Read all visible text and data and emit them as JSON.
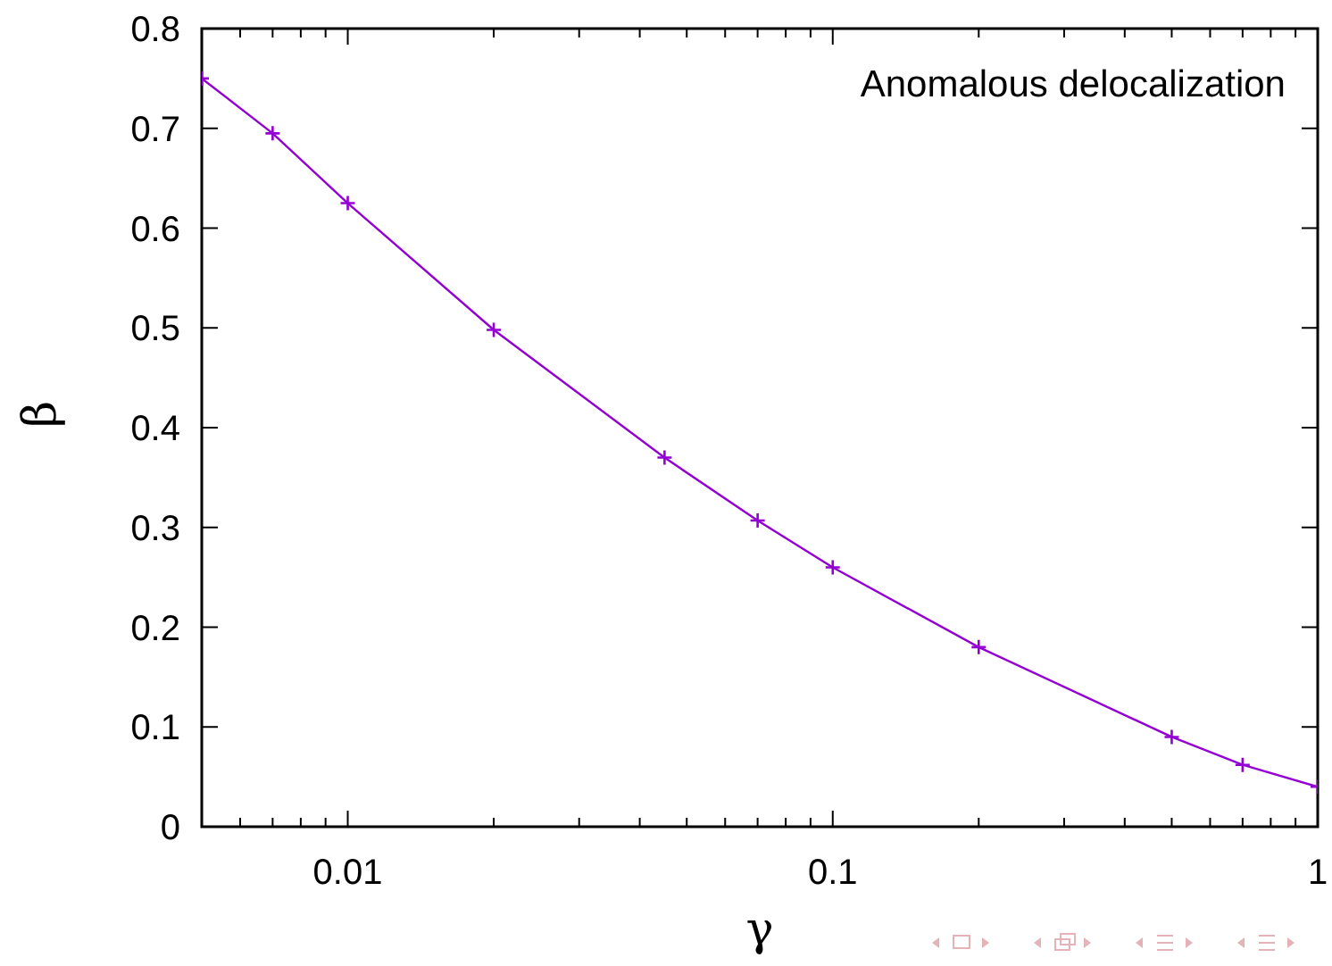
{
  "chart_data": {
    "type": "line",
    "xlabel": "γ",
    "ylabel": "β",
    "annotations": [
      "Anomalous delocalization"
    ],
    "x": [
      0.005,
      0.007,
      0.01,
      0.02,
      0.045,
      0.07,
      0.1,
      0.2,
      0.5,
      0.7,
      1
    ],
    "series": [
      {
        "color": "#9400d3",
        "values": [
          0.75,
          0.695,
          0.625,
          0.498,
          0.37,
          0.307,
          0.26,
          0.18,
          0.09,
          0.062,
          0.04
        ]
      }
    ],
    "log": "x",
    "xlim": [
      0.005,
      1
    ],
    "xticks": [
      {
        "value": 0.006,
        "label": null
      },
      {
        "value": 0.007,
        "label": null
      },
      {
        "value": 0.008,
        "label": null
      },
      {
        "value": 0.009,
        "label": null
      },
      0.01,
      {
        "value": 0.02,
        "label": null
      },
      {
        "value": 0.03,
        "label": null
      },
      {
        "value": 0.04,
        "label": null
      },
      {
        "value": 0.05,
        "label": null
      },
      {
        "value": 0.06,
        "label": null
      },
      {
        "value": 0.07,
        "label": null
      },
      {
        "value": 0.08,
        "label": null
      },
      {
        "value": 0.09,
        "label": null
      },
      0.1,
      {
        "value": 0.2,
        "label": null
      },
      {
        "value": 0.3,
        "label": null
      },
      {
        "value": 0.4,
        "label": null
      },
      {
        "value": 0.5,
        "label": null
      },
      {
        "value": 0.6,
        "label": null
      },
      {
        "value": 0.7,
        "label": null
      },
      {
        "value": 0.8,
        "label": null
      },
      {
        "value": 0.9,
        "label": null
      },
      1
    ],
    "ylim": [
      0,
      0.8
    ],
    "yticks": [
      0,
      0.1,
      0.2,
      0.3,
      0.4,
      0.5,
      0.6,
      0.7,
      0.8
    ],
    "grid": false,
    "legend": false,
    "marker": "cross",
    "line_style": "solid"
  }
}
